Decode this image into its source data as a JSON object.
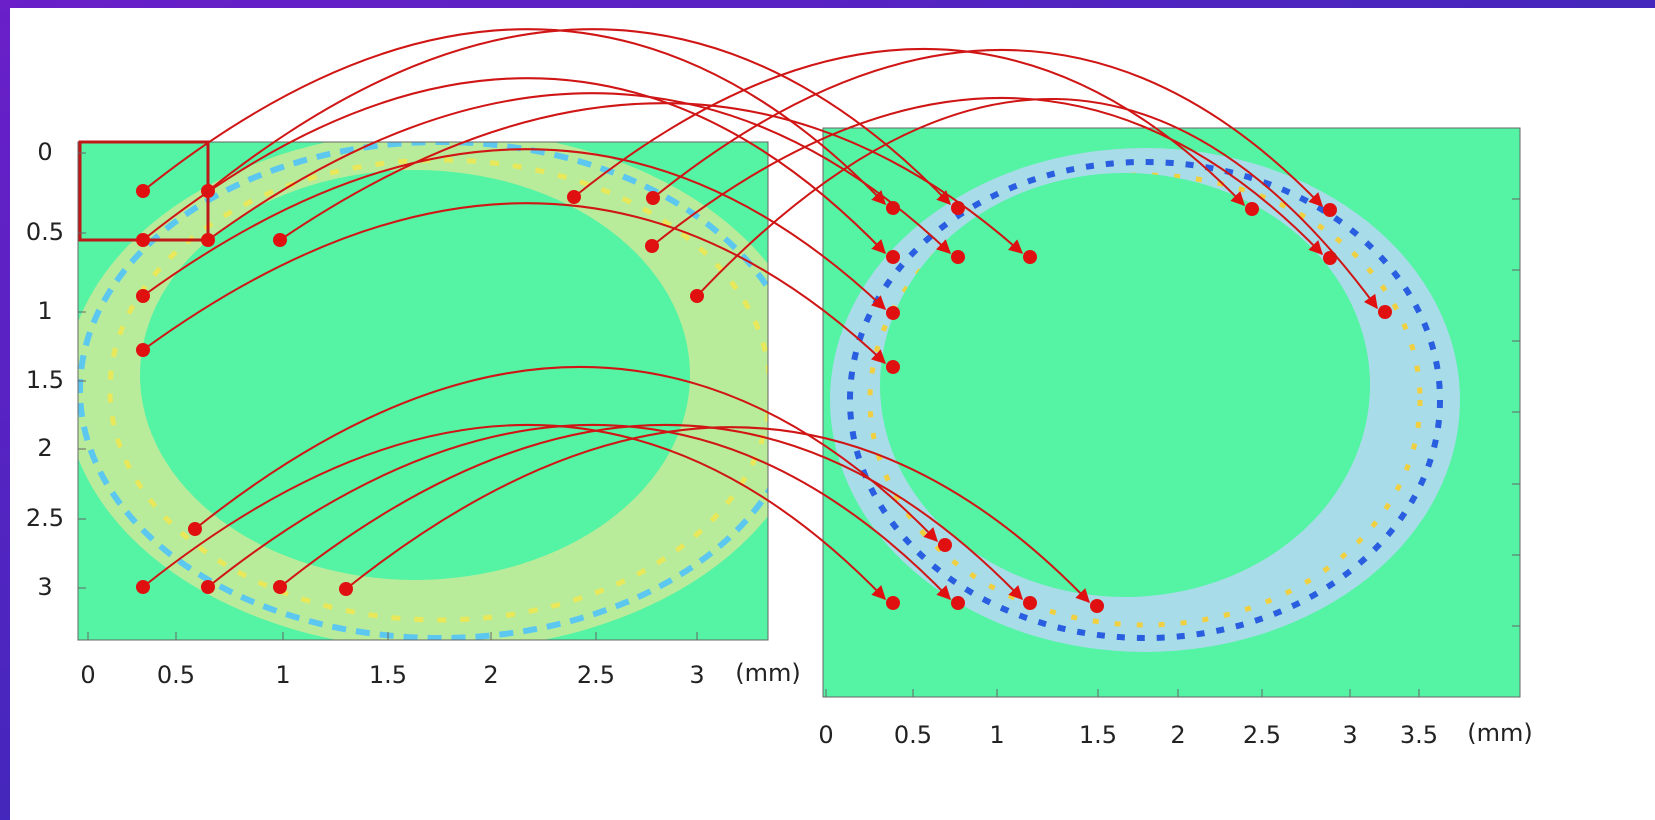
{
  "left_panel": {
    "y_ticks": [
      "0",
      "0.5",
      "1",
      "1.5",
      "2",
      "2.5",
      "3"
    ],
    "x_ticks": [
      "0",
      "0.5",
      "1",
      "1.5",
      "2",
      "2.5",
      "3"
    ],
    "unit": "(mm)"
  },
  "right_panel": {
    "x_ticks": [
      "0",
      "0.5",
      "1",
      "1.5",
      "2",
      "2.5",
      "3",
      "3.5"
    ],
    "unit": "(mm)"
  }
}
